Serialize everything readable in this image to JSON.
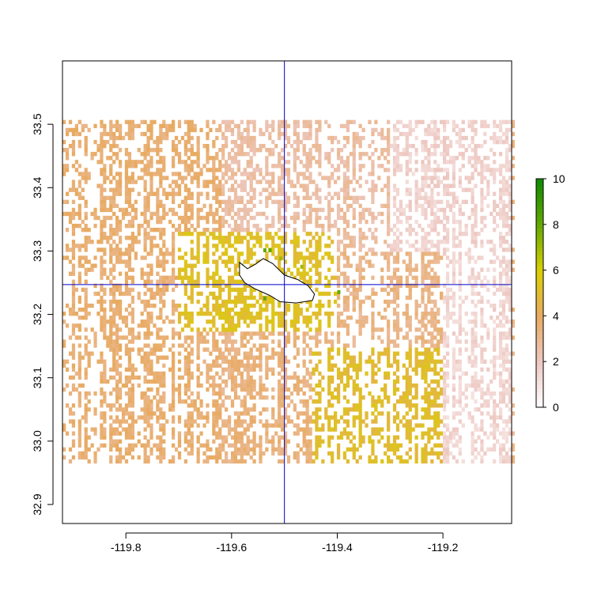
{
  "chart_data": {
    "type": "heatmap",
    "xlim": [
      -119.92,
      -119.07
    ],
    "ylim": [
      32.87,
      33.6
    ],
    "x_ticks": [
      -119.8,
      -119.6,
      -119.4,
      -119.2
    ],
    "x_tick_labels": [
      "-119.8",
      "-119.6",
      "-119.4",
      "-119.2"
    ],
    "y_ticks": [
      32.9,
      33.0,
      33.1,
      33.2,
      33.3,
      33.4,
      33.5
    ],
    "y_tick_labels": [
      "32.9",
      "33.0",
      "33.1",
      "33.2",
      "33.3",
      "33.4",
      "33.5"
    ],
    "reference_lines": {
      "vertical_x": -119.5,
      "horizontal_y": 33.247,
      "color": "#0000cc"
    },
    "grid": false,
    "raster_extent": {
      "xmin": -119.92,
      "xmax": -119.07,
      "ymin": 32.965,
      "ymax": 33.505
    },
    "value_range": [
      0,
      10
    ],
    "color_scale": {
      "title": "",
      "ticks": [
        0,
        2,
        4,
        6,
        8,
        10
      ],
      "tick_labels": [
        "0",
        "2",
        "4",
        "6",
        "8",
        "10"
      ],
      "stops": [
        {
          "value": 0,
          "color": "#ffffff"
        },
        {
          "value": 2,
          "color": "#edc7c1"
        },
        {
          "value": 4,
          "color": "#e8aa60"
        },
        {
          "value": 6,
          "color": "#d9cf00"
        },
        {
          "value": 8,
          "color": "#63a800"
        },
        {
          "value": 10,
          "color": "#0f8a00"
        }
      ]
    },
    "value_zones": [
      {
        "x": [
          -119.92,
          -119.62
        ],
        "y": [
          32.965,
          33.505
        ],
        "value": 3.6
      },
      {
        "x": [
          -119.62,
          -119.3
        ],
        "y": [
          33.3,
          33.505
        ],
        "value": 2.6
      },
      {
        "x": [
          -119.3,
          -119.07
        ],
        "y": [
          33.3,
          33.505
        ],
        "value": 1.6
      },
      {
        "x": [
          -119.7,
          -119.4
        ],
        "y": [
          33.17,
          33.33
        ],
        "value": 5.2
      },
      {
        "x": [
          -119.45,
          -119.15
        ],
        "y": [
          32.965,
          33.15
        ],
        "value": 5.0
      },
      {
        "x": [
          -119.6,
          -119.45
        ],
        "y": [
          32.965,
          33.17
        ],
        "value": 3.4
      },
      {
        "x": [
          -119.2,
          -119.07
        ],
        "y": [
          32.965,
          33.3
        ],
        "value": 1.5
      }
    ],
    "green_cells": [
      {
        "x": -119.54,
        "y": 33.298,
        "value": 8
      },
      {
        "x": -119.53,
        "y": 33.298,
        "value": 8
      },
      {
        "x": -119.51,
        "y": 33.285,
        "value": 7
      },
      {
        "x": -119.47,
        "y": 33.272,
        "value": 7
      },
      {
        "x": -119.54,
        "y": 33.222,
        "value": 8
      },
      {
        "x": -119.4,
        "y": 33.232,
        "value": 8
      }
    ],
    "island_outline": [
      [
        -119.585,
        33.282
      ],
      [
        -119.57,
        33.272
      ],
      [
        -119.555,
        33.279
      ],
      [
        -119.54,
        33.288
      ],
      [
        -119.522,
        33.28
      ],
      [
        -119.5,
        33.262
      ],
      [
        -119.475,
        33.255
      ],
      [
        -119.455,
        33.245
      ],
      [
        -119.443,
        33.232
      ],
      [
        -119.447,
        33.222
      ],
      [
        -119.478,
        33.218
      ],
      [
        -119.508,
        33.22
      ],
      [
        -119.528,
        33.23
      ],
      [
        -119.555,
        33.24
      ],
      [
        -119.575,
        33.25
      ],
      [
        -119.585,
        33.262
      ]
    ]
  }
}
